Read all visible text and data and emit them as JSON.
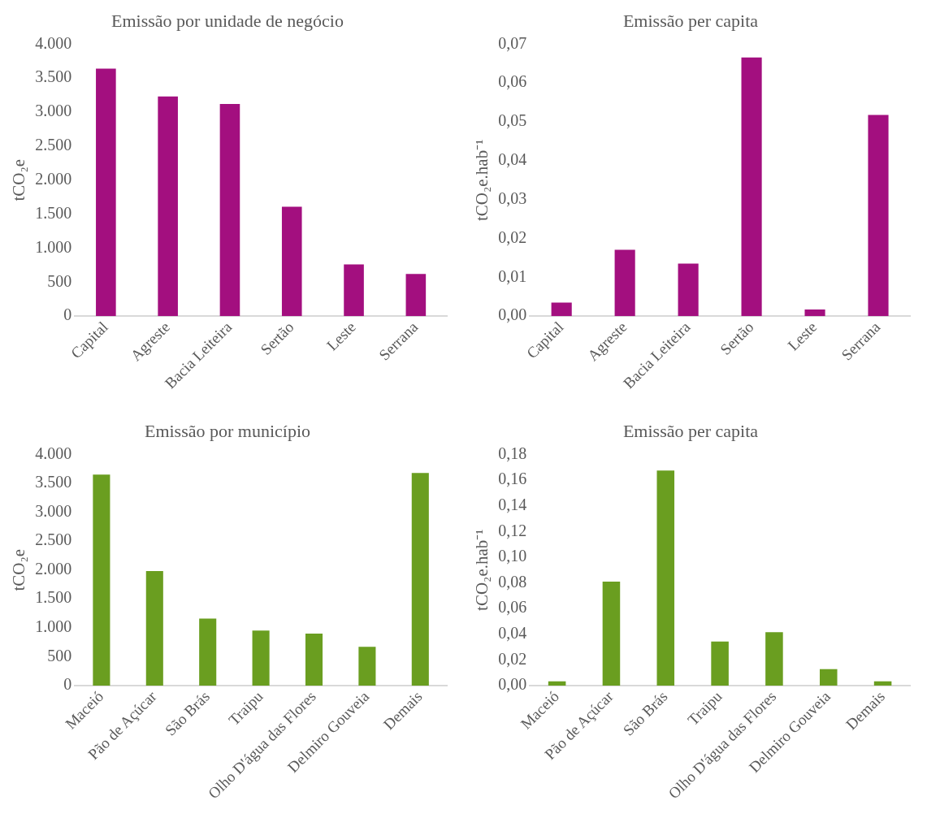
{
  "chart_data": [
    {
      "type": "bar",
      "title": "Emissão por unidade de negócio",
      "ylabel": "tCO₂e",
      "categories": [
        "Capital",
        "Agreste",
        "Bacia Leiteira",
        "Sertão",
        "Leste",
        "Serrana"
      ],
      "series": [
        {
          "color": "#a30f7f",
          "values": [
            3640,
            3230,
            3120,
            1610,
            760,
            620
          ]
        }
      ],
      "ylim": [
        0,
        4000
      ],
      "yticks": [
        {
          "value": 0,
          "label": "0"
        },
        {
          "value": 500,
          "label": "500"
        },
        {
          "value": 1000,
          "label": "1.000"
        },
        {
          "value": 1500,
          "label": "1.500"
        },
        {
          "value": 2000,
          "label": "2.000"
        },
        {
          "value": 2500,
          "label": "2.500"
        },
        {
          "value": 3000,
          "label": "3.000"
        },
        {
          "value": 3500,
          "label": "3.500"
        },
        {
          "value": 4000,
          "label": "4.000"
        }
      ],
      "grid": false,
      "legend": false
    },
    {
      "type": "bar",
      "title": "Emissão per capita",
      "ylabel": "tCO₂e.hab⁻¹",
      "categories": [
        "Capital",
        "Agreste",
        "Bacia Leiteira",
        "Sertão",
        "Leste",
        "Serrana"
      ],
      "series": [
        {
          "color": "#a30f7f",
          "values": [
            0.0035,
            0.0171,
            0.0135,
            0.0666,
            0.0017,
            0.0518
          ]
        }
      ],
      "ylim": [
        0,
        0.07
      ],
      "yticks": [
        {
          "value": 0,
          "label": "0,00"
        },
        {
          "value": 0.01,
          "label": "0,01"
        },
        {
          "value": 0.02,
          "label": "0,02"
        },
        {
          "value": 0.03,
          "label": "0,03"
        },
        {
          "value": 0.04,
          "label": "0,04"
        },
        {
          "value": 0.05,
          "label": "0,05"
        },
        {
          "value": 0.06,
          "label": "0,06"
        },
        {
          "value": 0.07,
          "label": "0,07"
        }
      ],
      "grid": false,
      "legend": false
    },
    {
      "type": "bar",
      "title": "Emissão por município",
      "ylabel": "tCO₂e",
      "categories": [
        "Maceió",
        "Pão de Açúcar",
        "São Brás",
        "Traipu",
        "Olho D'água das Flores",
        "Delmiro Gouveia",
        "Demais"
      ],
      "series": [
        {
          "color": "#6a9e20",
          "values": [
            3650,
            1980,
            1160,
            950,
            900,
            670,
            3680
          ]
        }
      ],
      "ylim": [
        0,
        4000
      ],
      "yticks": [
        {
          "value": 0,
          "label": "0"
        },
        {
          "value": 500,
          "label": "500"
        },
        {
          "value": 1000,
          "label": "1.000"
        },
        {
          "value": 1500,
          "label": "1.500"
        },
        {
          "value": 2000,
          "label": "2.000"
        },
        {
          "value": 2500,
          "label": "2.500"
        },
        {
          "value": 3000,
          "label": "3.000"
        },
        {
          "value": 3500,
          "label": "3.500"
        },
        {
          "value": 4000,
          "label": "4.000"
        }
      ],
      "grid": false,
      "legend": false
    },
    {
      "type": "bar",
      "title": "Emissão per capita",
      "ylabel": "tCO₂e.hab⁻¹",
      "categories": [
        "Maceió",
        "Pão de Açúcar",
        "São Brás",
        "Traipu",
        "Olho D'água das Flores",
        "Delmiro Gouveia",
        "Demais"
      ],
      "series": [
        {
          "color": "#6a9e20",
          "values": [
            0.0033,
            0.081,
            0.1675,
            0.0343,
            0.0415,
            0.0128,
            0.0033
          ]
        }
      ],
      "ylim": [
        0,
        0.18
      ],
      "yticks": [
        {
          "value": 0,
          "label": "0,00"
        },
        {
          "value": 0.02,
          "label": "0,02"
        },
        {
          "value": 0.04,
          "label": "0,04"
        },
        {
          "value": 0.06,
          "label": "0,06"
        },
        {
          "value": 0.08,
          "label": "0,08"
        },
        {
          "value": 0.1,
          "label": "0,10"
        },
        {
          "value": 0.12,
          "label": "0,12"
        },
        {
          "value": 0.14,
          "label": "0,14"
        },
        {
          "value": 0.16,
          "label": "0,16"
        },
        {
          "value": 0.18,
          "label": "0,18"
        }
      ],
      "grid": false,
      "legend": false
    }
  ]
}
